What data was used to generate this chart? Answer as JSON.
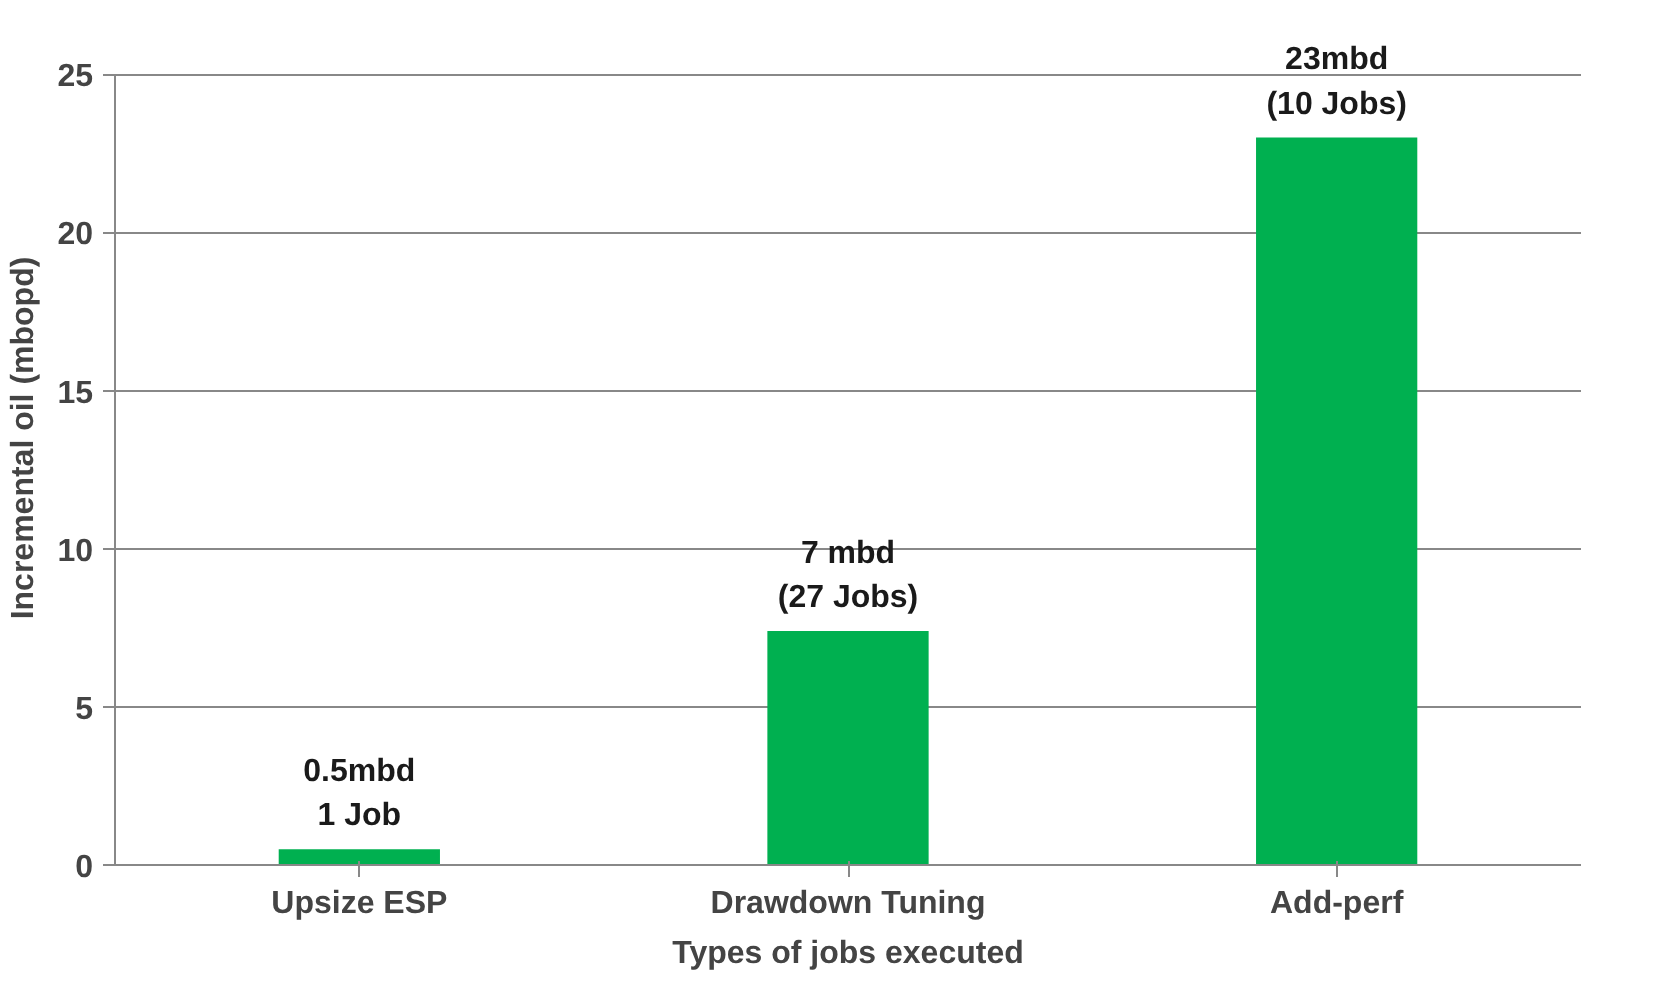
{
  "chart_data": {
    "type": "bar",
    "xlabel": "Types of jobs executed",
    "ylabel": "Incremental oil (mbopd)",
    "categories": [
      "Upsize ESP",
      "Drawdown Tuning",
      "Add-perf"
    ],
    "values": [
      0.5,
      7.4,
      23
    ],
    "color": "#00b050",
    "value_labels": [
      "0.5mbd\n1 Job",
      "7 mbd\n(27 Jobs)",
      "23mbd\n(10 Jobs)"
    ],
    "ylim": [
      0,
      25
    ],
    "yticks": [
      0,
      5,
      10,
      15,
      20,
      25
    ],
    "grid": "y"
  }
}
